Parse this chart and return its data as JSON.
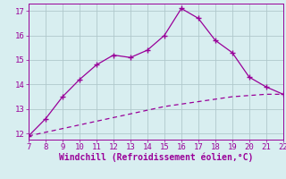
{
  "x_main": [
    7,
    8,
    9,
    10,
    11,
    12,
    13,
    14,
    15,
    16,
    17,
    18,
    19,
    20,
    21,
    22
  ],
  "y_main": [
    11.9,
    12.6,
    13.5,
    14.2,
    14.8,
    15.2,
    15.1,
    15.4,
    16.0,
    17.1,
    16.7,
    15.8,
    15.3,
    14.3,
    13.9,
    13.6
  ],
  "x_dashed": [
    7,
    8,
    9,
    10,
    11,
    12,
    13,
    14,
    15,
    16,
    17,
    18,
    19,
    20,
    21,
    22
  ],
  "y_dashed": [
    11.9,
    12.05,
    12.2,
    12.35,
    12.5,
    12.65,
    12.8,
    12.95,
    13.1,
    13.2,
    13.3,
    13.4,
    13.5,
    13.55,
    13.6,
    13.6
  ],
  "line_color": "#990099",
  "bg_color": "#d8eef0",
  "grid_color": "#b0c8cc",
  "xlabel": "Windchill (Refroidissement éolien,°C)",
  "xlim": [
    7,
    22
  ],
  "ylim": [
    11.75,
    17.3
  ],
  "xticks": [
    7,
    8,
    9,
    10,
    11,
    12,
    13,
    14,
    15,
    16,
    17,
    18,
    19,
    20,
    21,
    22
  ],
  "yticks": [
    12,
    13,
    14,
    15,
    16,
    17
  ],
  "marker": "+",
  "markersize": 4,
  "markeredgewidth": 1.0,
  "linewidth": 0.9,
  "xlabel_fontsize": 7,
  "tick_fontsize": 6.5
}
